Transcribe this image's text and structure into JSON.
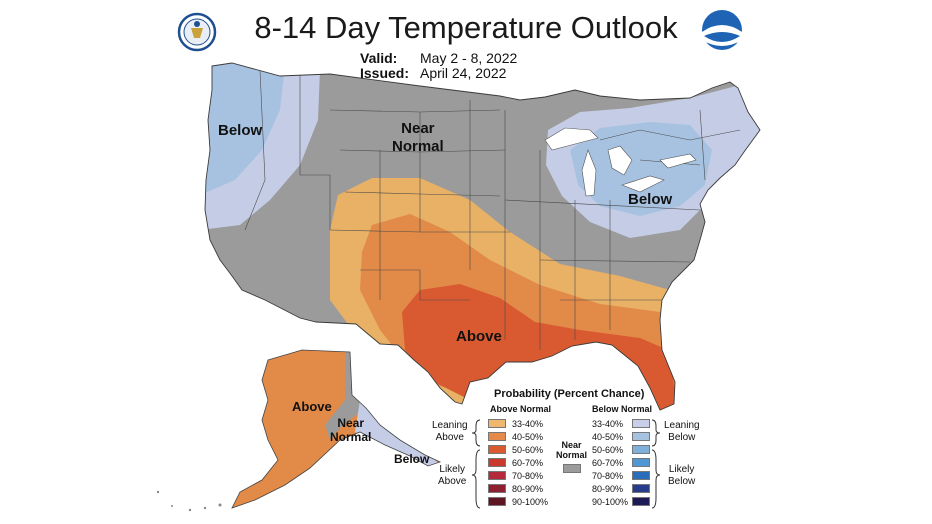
{
  "title": "8-14 Day Temperature Outlook",
  "valid": {
    "label": "Valid:",
    "value": "May 2 - 8, 2022"
  },
  "issued": {
    "label": "Issued:",
    "value": "April 24, 2022"
  },
  "logos": {
    "left": "doc-seal-icon",
    "right": "noaa-logo-icon"
  },
  "map_labels": {
    "below_west": "Below",
    "near_normal": [
      "Near",
      "Normal"
    ],
    "below_east": "Below",
    "above_south": "Above",
    "above_alaska": "Above",
    "near_normal_alaska": [
      "Near",
      "Normal"
    ],
    "below_alaska": "Below"
  },
  "colors": {
    "near_normal": "#9b9b9b",
    "above_33_40": "#e8b166",
    "above_40_50": "#e28a48",
    "above_50_60": "#d95a30",
    "below_33_40": "#c5cde6",
    "below_40_50": "#a7c2e0"
  },
  "legend": {
    "title": "Probability (Percent Chance)",
    "above_header": "Above Normal",
    "below_header": "Below Normal",
    "near_header": [
      "Near",
      "Normal"
    ],
    "leaning_above": [
      "Leaning",
      "Above"
    ],
    "likely_above": [
      "Likely",
      "Above"
    ],
    "leaning_below": [
      "Leaning",
      "Below"
    ],
    "likely_below": [
      "Likely",
      "Below"
    ],
    "above_rows": [
      {
        "label": "33-40%",
        "color": "#f0b86e"
      },
      {
        "label": "40-50%",
        "color": "#e68a4a"
      },
      {
        "label": "50-60%",
        "color": "#d95a30"
      },
      {
        "label": "60-70%",
        "color": "#c83a2b"
      },
      {
        "label": "70-80%",
        "color": "#b52a3a"
      },
      {
        "label": "80-90%",
        "color": "#8e1f33"
      },
      {
        "label": "90-100%",
        "color": "#5e1622"
      }
    ],
    "below_rows": [
      {
        "label": "33-40%",
        "color": "#c9cfe8"
      },
      {
        "label": "40-50%",
        "color": "#a7c2e0"
      },
      {
        "label": "50-60%",
        "color": "#7fb0dc"
      },
      {
        "label": "60-70%",
        "color": "#4f98d4"
      },
      {
        "label": "70-80%",
        "color": "#2a6db8"
      },
      {
        "label": "80-90%",
        "color": "#283c8c"
      },
      {
        "label": "90-100%",
        "color": "#1d1b55"
      }
    ]
  }
}
